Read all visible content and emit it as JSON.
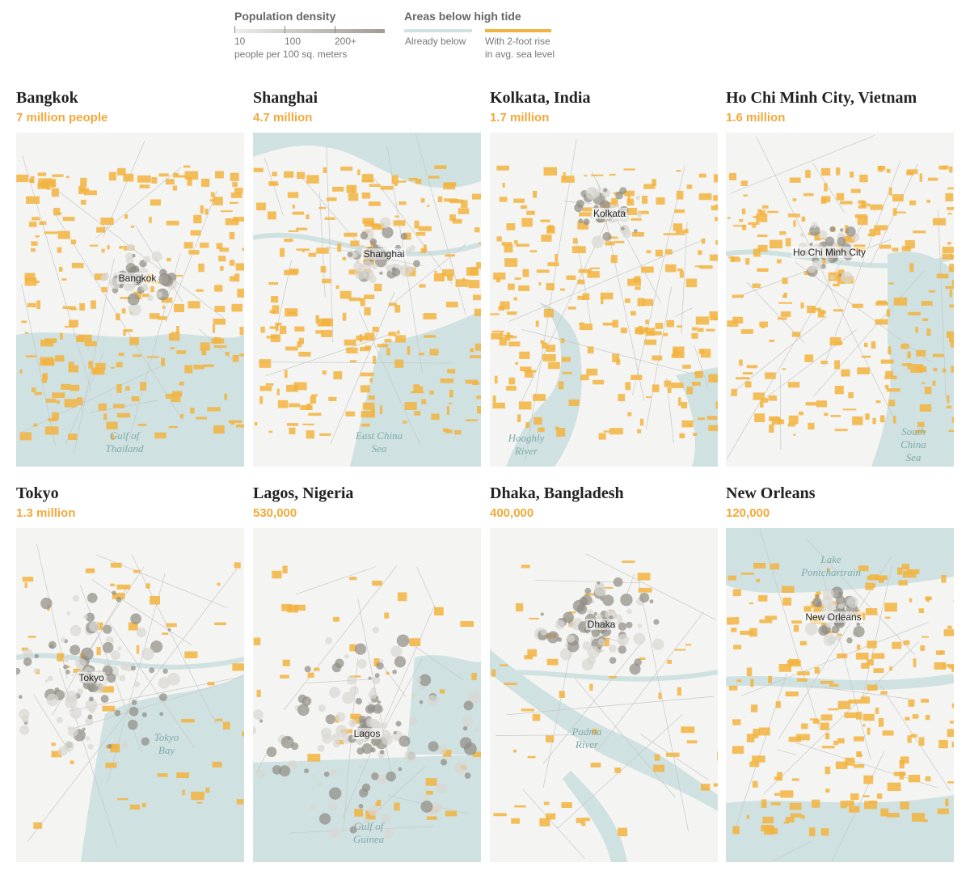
{
  "colors": {
    "water": "#cfe1e1",
    "flood": "#f2b340",
    "land": "#f4f4f2",
    "population_dense": "#8f8b83",
    "population_light": "#d9d7d2",
    "road": "#c8c8c8",
    "title": "#222222",
    "population_text": "#f2a93b",
    "water_text": "#7fa9a9"
  },
  "legend": {
    "population": {
      "title": "Population density",
      "ticks": [
        "10",
        "100",
        "200+"
      ],
      "unit": "people per 100 sq. meters"
    },
    "tide": {
      "title": "Areas below high tide",
      "already": "Already below",
      "rise_line1": "With 2-foot rise",
      "rise_line2": "in avg. sea level"
    }
  },
  "cities": [
    {
      "name": "Bangkok",
      "population": "7 million people",
      "label": "Bangkok",
      "water": [
        "Gulf of",
        "Thailand"
      ]
    },
    {
      "name": "Shanghai",
      "population": "4.7 million",
      "label": "Shanghai",
      "water": [
        "East China",
        "Sea"
      ]
    },
    {
      "name": "Kolkata, India",
      "population": "1.7 million",
      "label": "Kolkata",
      "water": [
        "Hooghly",
        "River"
      ]
    },
    {
      "name": "Ho Chi Minh City, Vietnam",
      "population": "1.6 million",
      "label": "Ho Chi Minh City",
      "water": [
        "South",
        "China Sea"
      ]
    },
    {
      "name": "Tokyo",
      "population": "1.3 million",
      "label": "Tokyo",
      "water": [
        "Tokyo",
        "Bay"
      ]
    },
    {
      "name": "Lagos, Nigeria",
      "population": "530,000",
      "label": "Lagos",
      "water": [
        "Gulf of",
        "Guinea"
      ]
    },
    {
      "name": "Dhaka, Bangladesh",
      "population": "400,000",
      "label": "Dhaka",
      "water": [
        "Padma",
        "River"
      ]
    },
    {
      "name": "New Orleans",
      "population": "120,000",
      "label": "New Orleans",
      "water": [
        "Lake",
        "Pontchartrain"
      ]
    }
  ]
}
